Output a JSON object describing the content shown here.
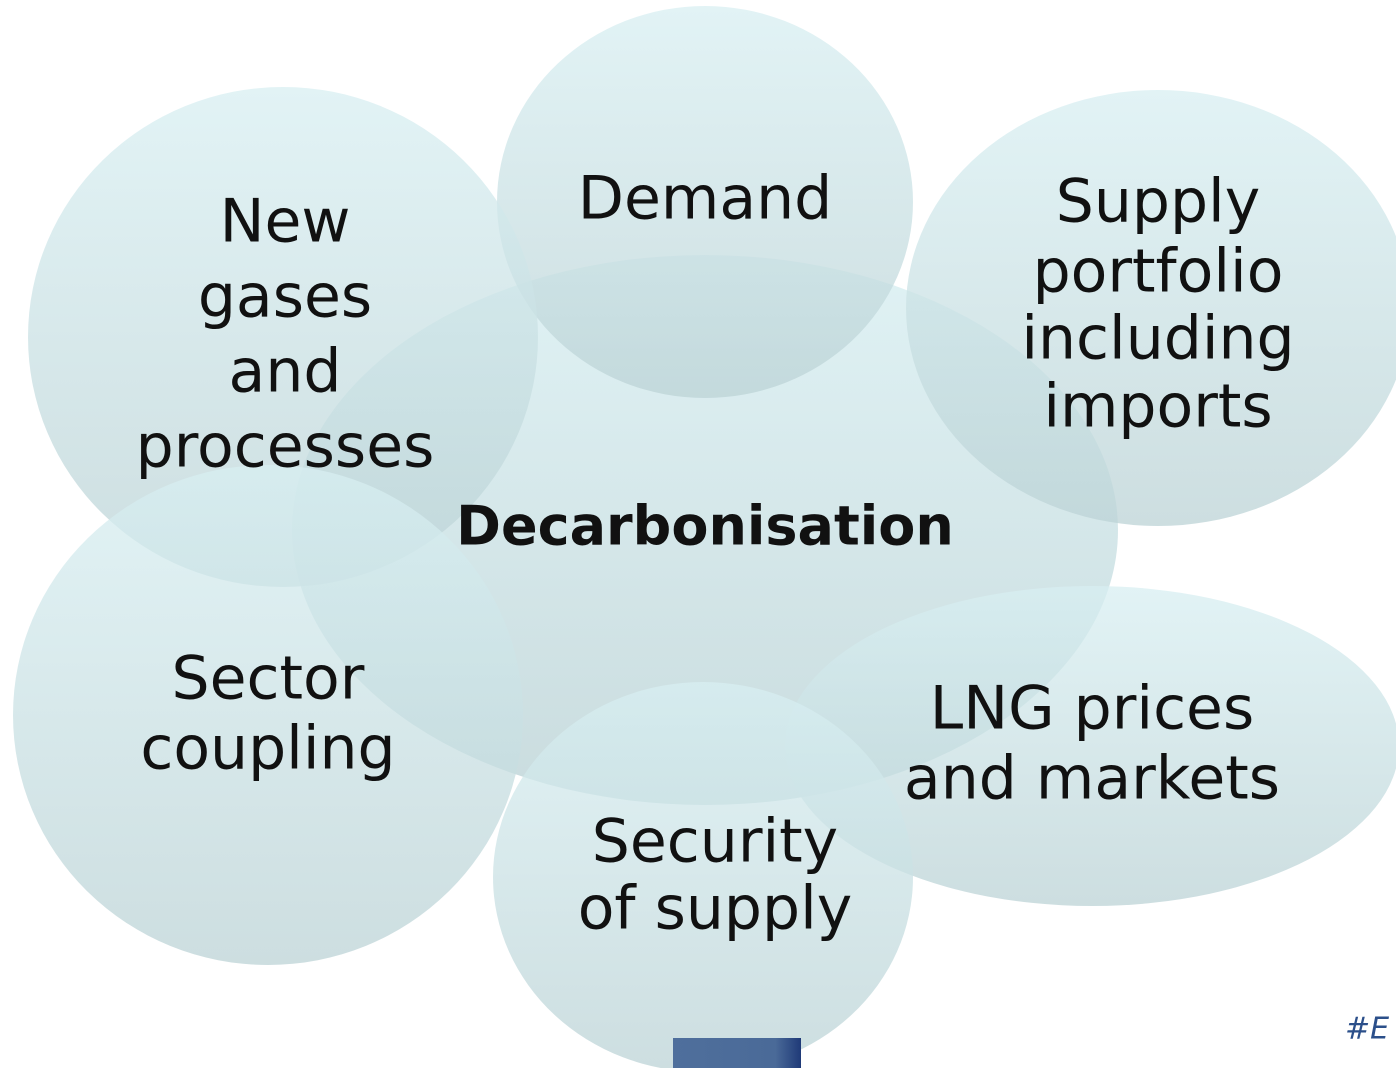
{
  "center": {
    "label": "Decarbonisation"
  },
  "nodes": [
    {
      "label": [
        "Demand"
      ]
    },
    {
      "label": [
        "New",
        "gases",
        "and",
        "processes"
      ]
    },
    {
      "label": [
        "Supply",
        "portfolio",
        "including",
        "imports"
      ]
    },
    {
      "label": [
        "Sector",
        "coupling"
      ]
    },
    {
      "label": [
        "LNG prices",
        "and markets"
      ]
    },
    {
      "label": [
        "Security",
        "of supply"
      ]
    }
  ],
  "footer": {
    "tag": "#E"
  }
}
